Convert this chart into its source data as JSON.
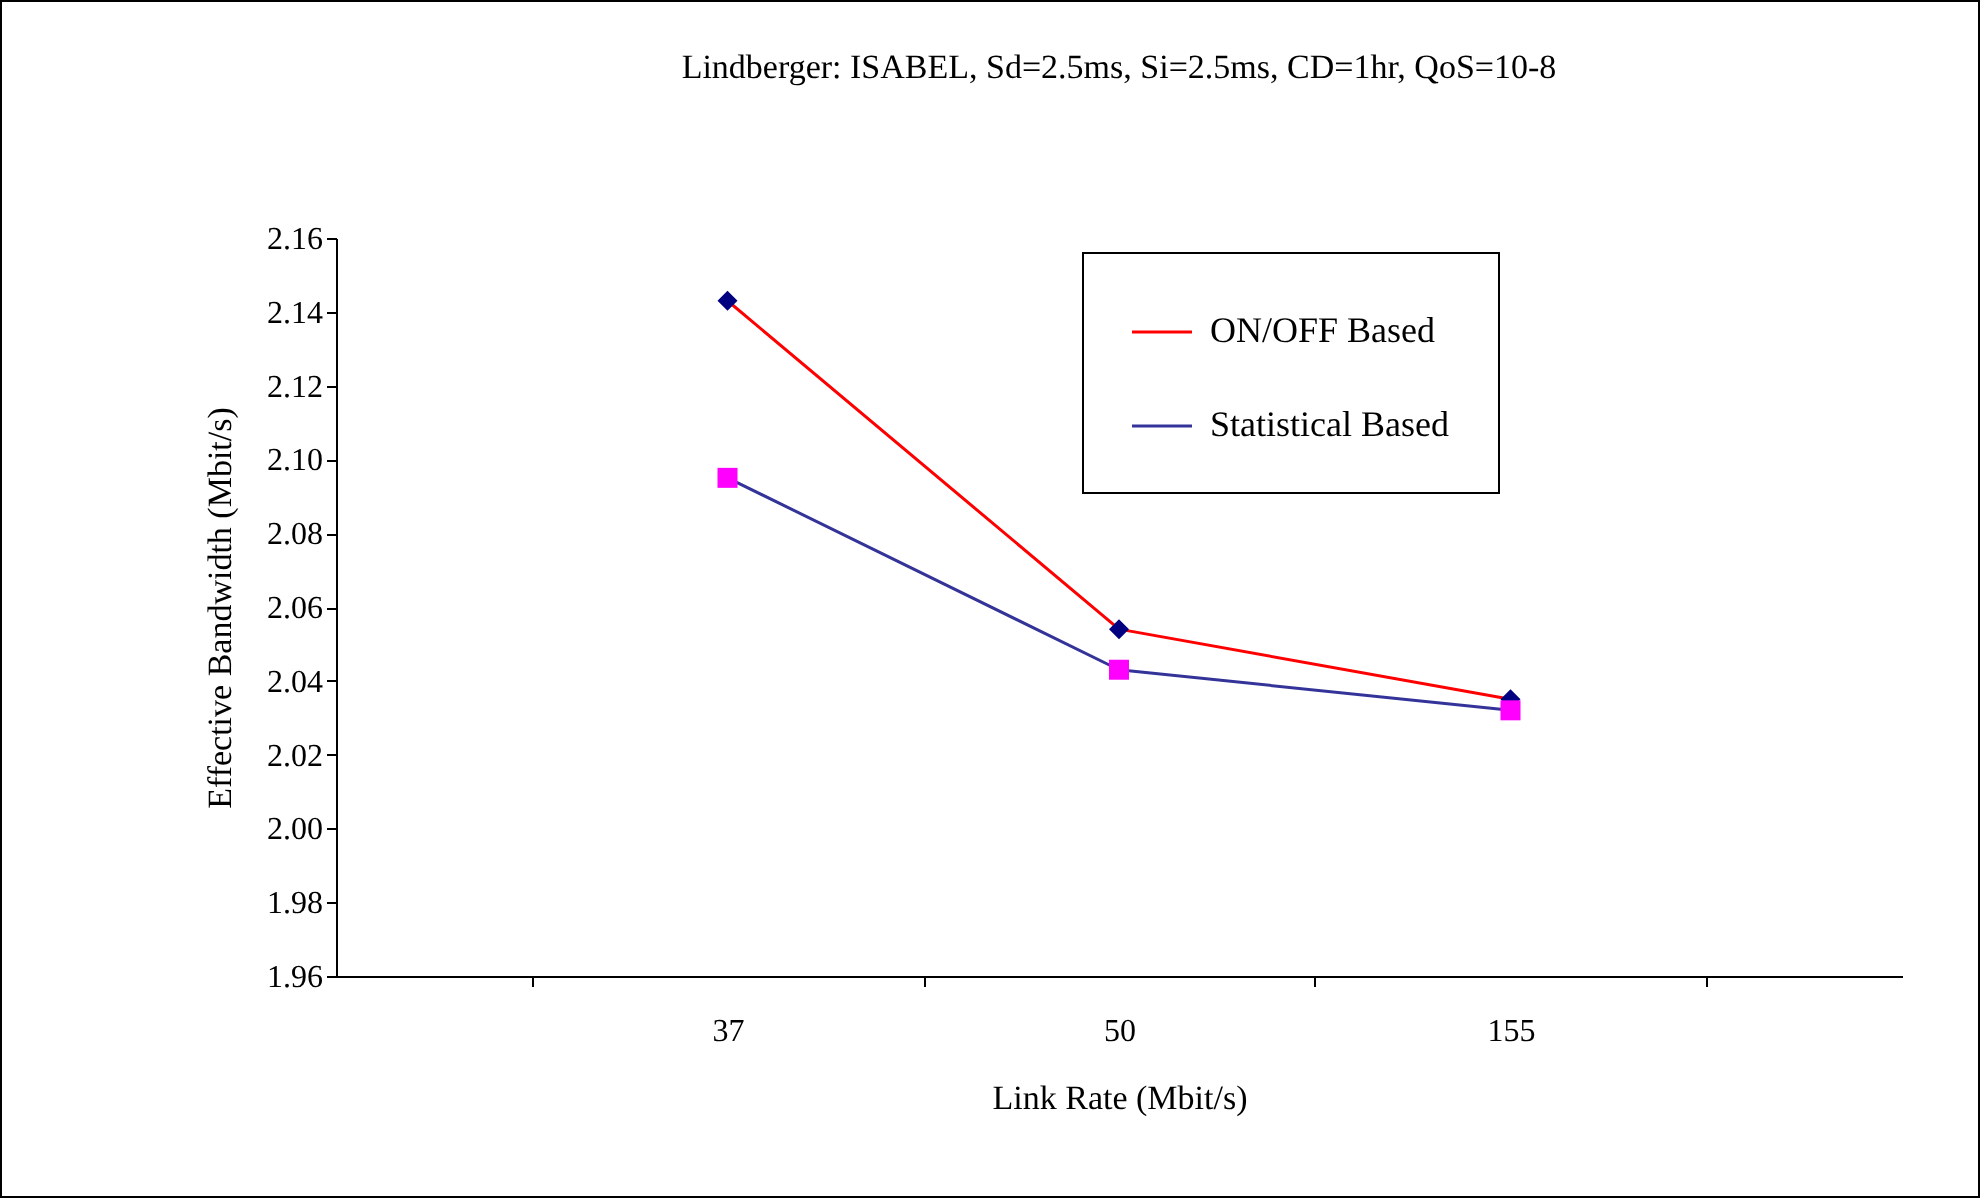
{
  "chart_data": {
    "type": "line",
    "title": "Lindberger: ISABEL, Sd=2.5ms, Si=2.5ms, CD=1hr, QoS=10-8",
    "xlabel": "Link Rate (Mbit/s)",
    "ylabel": "Effective Bandwidth (Mbit/s)",
    "categories": [
      "37",
      "50",
      "155"
    ],
    "series": [
      {
        "name": "ON/OFF Based",
        "color": "#ff0000",
        "colors": [
          "#000080",
          "#000080",
          "#000080"
        ],
        "marker": "diamond",
        "values": [
          2.143,
          2.054,
          2.035
        ]
      },
      {
        "name": "Statistical Based",
        "color": "#333399",
        "colors": [
          "#ff00ff",
          "#ff00ff",
          "#ff00ff"
        ],
        "marker": "square",
        "values": [
          2.095,
          2.043,
          2.032
        ]
      }
    ],
    "ylim": [
      1.96,
      2.16
    ],
    "yticks": [
      1.96,
      1.98,
      {
        "value": 2,
        "label": "2.00"
      },
      2.02,
      2.04,
      2.06,
      2.08,
      {
        "value": 2.1,
        "label": "2.10"
      },
      2.12,
      2.14,
      2.16
    ],
    "grid": false,
    "legend": "top right"
  }
}
